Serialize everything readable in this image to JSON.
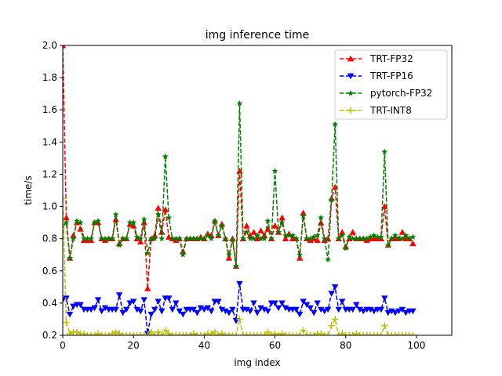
{
  "chart_data": {
    "type": "line",
    "title": "img inference time",
    "xlabel": "img index",
    "ylabel": "time/s",
    "xlim": [
      0,
      110
    ],
    "ylim": [
      0.2,
      2.0
    ],
    "x_ticks": [
      0,
      20,
      40,
      60,
      80,
      100
    ],
    "y_ticks": [
      0.2,
      0.4,
      0.6,
      0.8,
      1.0,
      1.2,
      1.4,
      1.6,
      1.8,
      2.0
    ],
    "x_tick_labels": [
      "0",
      "20",
      "40",
      "60",
      "80",
      "100"
    ],
    "y_tick_labels": [
      "0.2",
      "0.4",
      "0.6",
      "0.8",
      "1.0",
      "1.2",
      "1.4",
      "1.6",
      "1.8",
      "2.0"
    ],
    "legend_position": "top-right",
    "series": [
      {
        "name": "TRT-FP32",
        "color": "#ff0000",
        "marker": "triangle-up",
        "values": [
          2.0,
          0.93,
          0.68,
          0.82,
          0.9,
          0.86,
          0.79,
          0.79,
          0.79,
          0.9,
          0.9,
          0.8,
          0.79,
          0.8,
          0.8,
          0.92,
          0.77,
          0.8,
          0.8,
          0.89,
          0.88,
          0.8,
          0.78,
          0.9,
          0.49,
          0.8,
          0.82,
          0.99,
          0.84,
          0.98,
          0.81,
          0.8,
          0.79,
          0.8,
          0.72,
          0.8,
          0.8,
          0.8,
          0.8,
          0.81,
          0.8,
          0.83,
          0.82,
          0.91,
          0.82,
          0.89,
          0.8,
          0.68,
          0.8,
          0.63,
          1.22,
          0.8,
          0.88,
          0.82,
          0.84,
          0.8,
          0.85,
          0.82,
          0.86,
          0.8,
          0.88,
          0.84,
          0.93,
          0.8,
          0.83,
          0.8,
          0.8,
          0.68,
          0.96,
          0.8,
          0.79,
          0.8,
          0.79,
          0.9,
          0.79,
          0.8,
          1.05,
          1.12,
          0.8,
          0.84,
          0.75,
          0.8,
          0.84,
          0.8,
          0.8,
          0.8,
          0.79,
          0.8,
          0.8,
          0.8,
          0.8,
          1.0,
          0.76,
          0.8,
          0.8,
          0.8,
          0.84,
          0.8,
          0.8,
          0.77
        ]
      },
      {
        "name": "TRT-FP16",
        "color": "#0000ff",
        "marker": "triangle-down",
        "values": [
          0.42,
          0.43,
          0.33,
          0.38,
          0.39,
          0.39,
          0.36,
          0.36,
          0.36,
          0.37,
          0.42,
          0.35,
          0.37,
          0.36,
          0.36,
          0.36,
          0.45,
          0.34,
          0.36,
          0.4,
          0.41,
          0.36,
          0.35,
          0.42,
          0.21,
          0.33,
          0.36,
          0.41,
          0.35,
          0.43,
          0.43,
          0.36,
          0.4,
          0.35,
          0.33,
          0.36,
          0.36,
          0.36,
          0.34,
          0.37,
          0.36,
          0.37,
          0.35,
          0.41,
          0.41,
          0.36,
          0.35,
          0.34,
          0.36,
          0.29,
          0.52,
          0.36,
          0.36,
          0.35,
          0.4,
          0.34,
          0.37,
          0.36,
          0.35,
          0.4,
          0.4,
          0.37,
          0.4,
          0.37,
          0.36,
          0.36,
          0.36,
          0.33,
          0.41,
          0.39,
          0.37,
          0.34,
          0.4,
          0.36,
          0.35,
          0.36,
          0.46,
          0.5,
          0.36,
          0.41,
          0.36,
          0.36,
          0.36,
          0.39,
          0.36,
          0.35,
          0.36,
          0.36,
          0.35,
          0.36,
          0.36,
          0.43,
          0.34,
          0.35,
          0.34,
          0.35,
          0.36,
          0.34,
          0.35,
          0.35
        ]
      },
      {
        "name": "pytorch-FP32",
        "color": "#008000",
        "marker": "star",
        "values": [
          0.88,
          0.9,
          0.68,
          0.8,
          0.91,
          0.9,
          0.8,
          0.8,
          0.8,
          0.9,
          0.91,
          0.8,
          0.8,
          0.8,
          0.8,
          0.95,
          0.76,
          0.8,
          0.8,
          0.9,
          0.9,
          0.81,
          0.8,
          0.92,
          0.71,
          0.8,
          0.8,
          0.95,
          0.8,
          1.31,
          0.93,
          0.8,
          0.8,
          0.8,
          0.7,
          0.8,
          0.8,
          0.8,
          0.8,
          0.8,
          0.8,
          0.82,
          0.8,
          0.91,
          0.82,
          0.88,
          0.8,
          0.7,
          0.79,
          0.63,
          1.64,
          0.8,
          0.84,
          0.8,
          0.8,
          0.82,
          0.8,
          0.8,
          0.91,
          0.8,
          1.22,
          0.84,
          0.9,
          0.82,
          0.82,
          0.82,
          0.8,
          0.7,
          0.94,
          0.8,
          0.8,
          0.81,
          0.82,
          0.93,
          0.8,
          0.67,
          1.04,
          1.51,
          0.8,
          0.82,
          0.74,
          0.81,
          0.8,
          0.8,
          0.8,
          0.8,
          0.8,
          0.81,
          0.82,
          0.81,
          0.81,
          1.34,
          0.76,
          0.8,
          0.82,
          0.8,
          0.8,
          0.82,
          0.8,
          0.81
        ]
      },
      {
        "name": "TRT-INT8",
        "color": "#bfbf00",
        "marker": "plus",
        "values": [
          1.05,
          0.28,
          0.21,
          0.22,
          0.22,
          0.21,
          0.21,
          0.2,
          0.2,
          0.2,
          0.21,
          0.2,
          0.2,
          0.2,
          0.21,
          0.22,
          0.21,
          0.2,
          0.2,
          0.2,
          0.2,
          0.2,
          0.2,
          0.2,
          0.2,
          0.22,
          0.2,
          0.22,
          0.2,
          0.23,
          0.21,
          0.2,
          0.2,
          0.2,
          0.2,
          0.2,
          0.2,
          0.21,
          0.2,
          0.2,
          0.2,
          0.21,
          0.21,
          0.22,
          0.2,
          0.21,
          0.2,
          0.2,
          0.2,
          0.2,
          0.3,
          0.2,
          0.2,
          0.2,
          0.2,
          0.2,
          0.2,
          0.2,
          0.22,
          0.2,
          0.21,
          0.2,
          0.21,
          0.2,
          0.2,
          0.2,
          0.2,
          0.2,
          0.23,
          0.2,
          0.2,
          0.2,
          0.21,
          0.21,
          0.2,
          0.2,
          0.26,
          0.3,
          0.2,
          0.21,
          0.2,
          0.2,
          0.2,
          0.21,
          0.2,
          0.2,
          0.2,
          0.2,
          0.2,
          0.2,
          0.2,
          0.26,
          0.2,
          0.2,
          0.2,
          0.2,
          0.2,
          0.2,
          0.2,
          0.2
        ]
      }
    ]
  }
}
